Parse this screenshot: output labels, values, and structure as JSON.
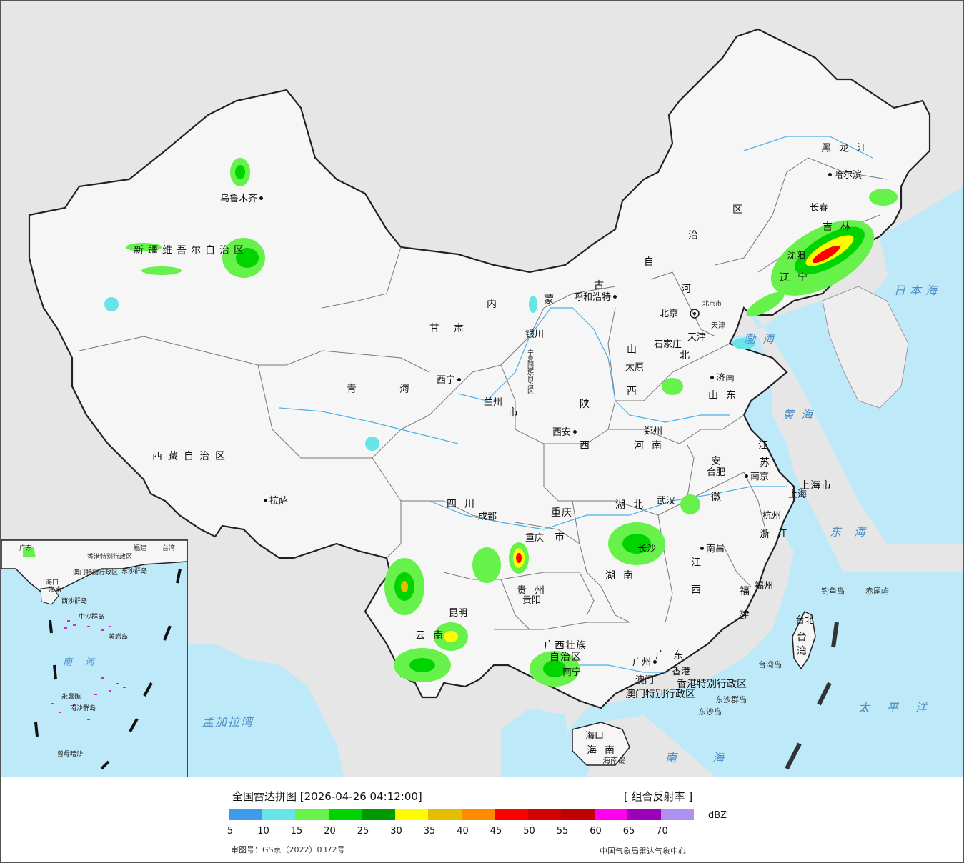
{
  "legend": {
    "title": "全国雷达拼图 [2026-04-26 04:12:00]",
    "product": "[ 组合反射率 ]",
    "unit": "dBZ",
    "review_number": "审图号：GS京（2022）0372号",
    "credit": "中国气象局雷达气象中心",
    "colors": [
      "#3d9bea",
      "#66e4e6",
      "#66f24a",
      "#00d400",
      "#009900",
      "#fffc00",
      "#e6be00",
      "#ff8a00",
      "#ff0000",
      "#d70000",
      "#c10000",
      "#ff00f0",
      "#9b00b8",
      "#ad90f0"
    ],
    "ticks": [
      "5",
      "10",
      "15",
      "20",
      "25",
      "30",
      "35",
      "40",
      "45",
      "50",
      "55",
      "60",
      "65",
      "70"
    ]
  },
  "map": {
    "regions": [
      "黑龙江",
      "吉林",
      "辽宁",
      "内蒙古自治区",
      "河北",
      "山西",
      "山东",
      "河南",
      "江苏",
      "安徽",
      "浙江",
      "江西",
      "湖北",
      "湖南",
      "福建",
      "广东",
      "广西壮族自治区",
      "贵州",
      "云南",
      "四川",
      "重庆市",
      "陕西",
      "甘肃",
      "青海",
      "宁夏回族自治区",
      "新疆维吾尔自治区",
      "西藏自治区",
      "海南",
      "台湾",
      "上海市",
      "香港特别行政区",
      "澳门特别行政区"
    ],
    "region_labels": {
      "heilongjiang": "黑龙江",
      "jilin": "吉林",
      "liaoning": "辽宁",
      "neimenggu_1": "内",
      "neimenggu_2": "蒙",
      "neimenggu_3": "古",
      "neimenggu_4": "自",
      "neimenggu_5": "治",
      "neimenggu_6": "区",
      "hebei_1": "河",
      "hebei_2": "北",
      "shanxi_1": "山",
      "shanxi_2": "西",
      "shandong": "山东",
      "henan": "河南",
      "jiangsu_1": "江",
      "jiangsu_2": "苏",
      "anhui_1": "安",
      "anhui_2": "徽",
      "zhejiang": "浙江",
      "jiangxi_1": "江",
      "jiangxi_2": "西",
      "hubei": "湖北",
      "hunan": "湖南",
      "fujian_1": "福",
      "fujian_2": "建",
      "guangdong": "广东",
      "guangxi_1": "广西壮族",
      "guangxi_2": "自治区",
      "guizhou": "贵州",
      "yunnan": "云南",
      "sichuan": "四川",
      "chongqing_1": "重庆",
      "chongqing_2": "市",
      "shaanxi_1": "陕",
      "shaanxi_2": "西",
      "gansu": "甘肃",
      "qinghai": "青海",
      "ningxia": "宁夏回族自治区",
      "xinjiang": "新疆维吾尔自治区",
      "xizang": "西藏自治区",
      "hainan": "海南",
      "taiwan_1": "台",
      "taiwan_2": "湾",
      "shanghai": "上海市",
      "hongkong": "香港特别行政区",
      "macau": "澳门特别行政区",
      "beijing_shi": "北京市",
      "tianjin_shi": "天津",
      "tianjin_label": "天津",
      "sanzhou_shi": "市"
    },
    "cities": {
      "wulumuqi": "乌鲁木齐",
      "haerbin": "哈尔滨",
      "changchun": "长春",
      "shenyang": "沈阳",
      "huhehaote": "呼和浩特",
      "beijing": "北京",
      "shijiazhuang": "石家庄",
      "taiyuan": "太原",
      "jinan": "济南",
      "yinchuan": "银川",
      "xining": "西宁",
      "lanzhou": "兰州",
      "xian": "西安",
      "zhengzhou": "郑州",
      "hefei": "合肥",
      "nanjing": "南京",
      "shanghai": "上海",
      "hangzhou": "杭州",
      "wuhan": "武汉",
      "chengdu": "成都",
      "chongqing": "重庆",
      "lasa": "拉萨",
      "changsha": "长沙",
      "nanchang": "南昌",
      "fuzhou": "福州",
      "taibei": "台北",
      "guiyang": "贵阳",
      "kunming": "昆明",
      "nanning": "南宁",
      "guangzhou": "广州",
      "aomen": "澳门",
      "xianggang": "香港",
      "haikou": "海口"
    },
    "seas": {
      "riben": "日本海",
      "bohai": "渤海",
      "huanghai": "黄海",
      "donghai": "东海",
      "taipingyang": "太平洋",
      "nanhai": "南海",
      "mengjiala": "孟加拉湾"
    },
    "islands": {
      "diaoyu": "钓鱼岛",
      "chiwei": "赤尾屿",
      "taiwan_dao": "台湾岛",
      "dongsha": "东沙群岛",
      "dongsha_dao": "东沙岛",
      "hainan_dao": "海南岛"
    },
    "inset": {
      "labels": [
        "广东",
        "福建",
        "台湾",
        "海南",
        "香港特别行政区",
        "澳门特别行政区",
        "东沙群岛",
        "西沙群岛",
        "中沙群岛",
        "黄岩岛",
        "南海",
        "南沙群岛",
        "曾母暗沙",
        "永暑礁",
        "海口"
      ]
    }
  }
}
